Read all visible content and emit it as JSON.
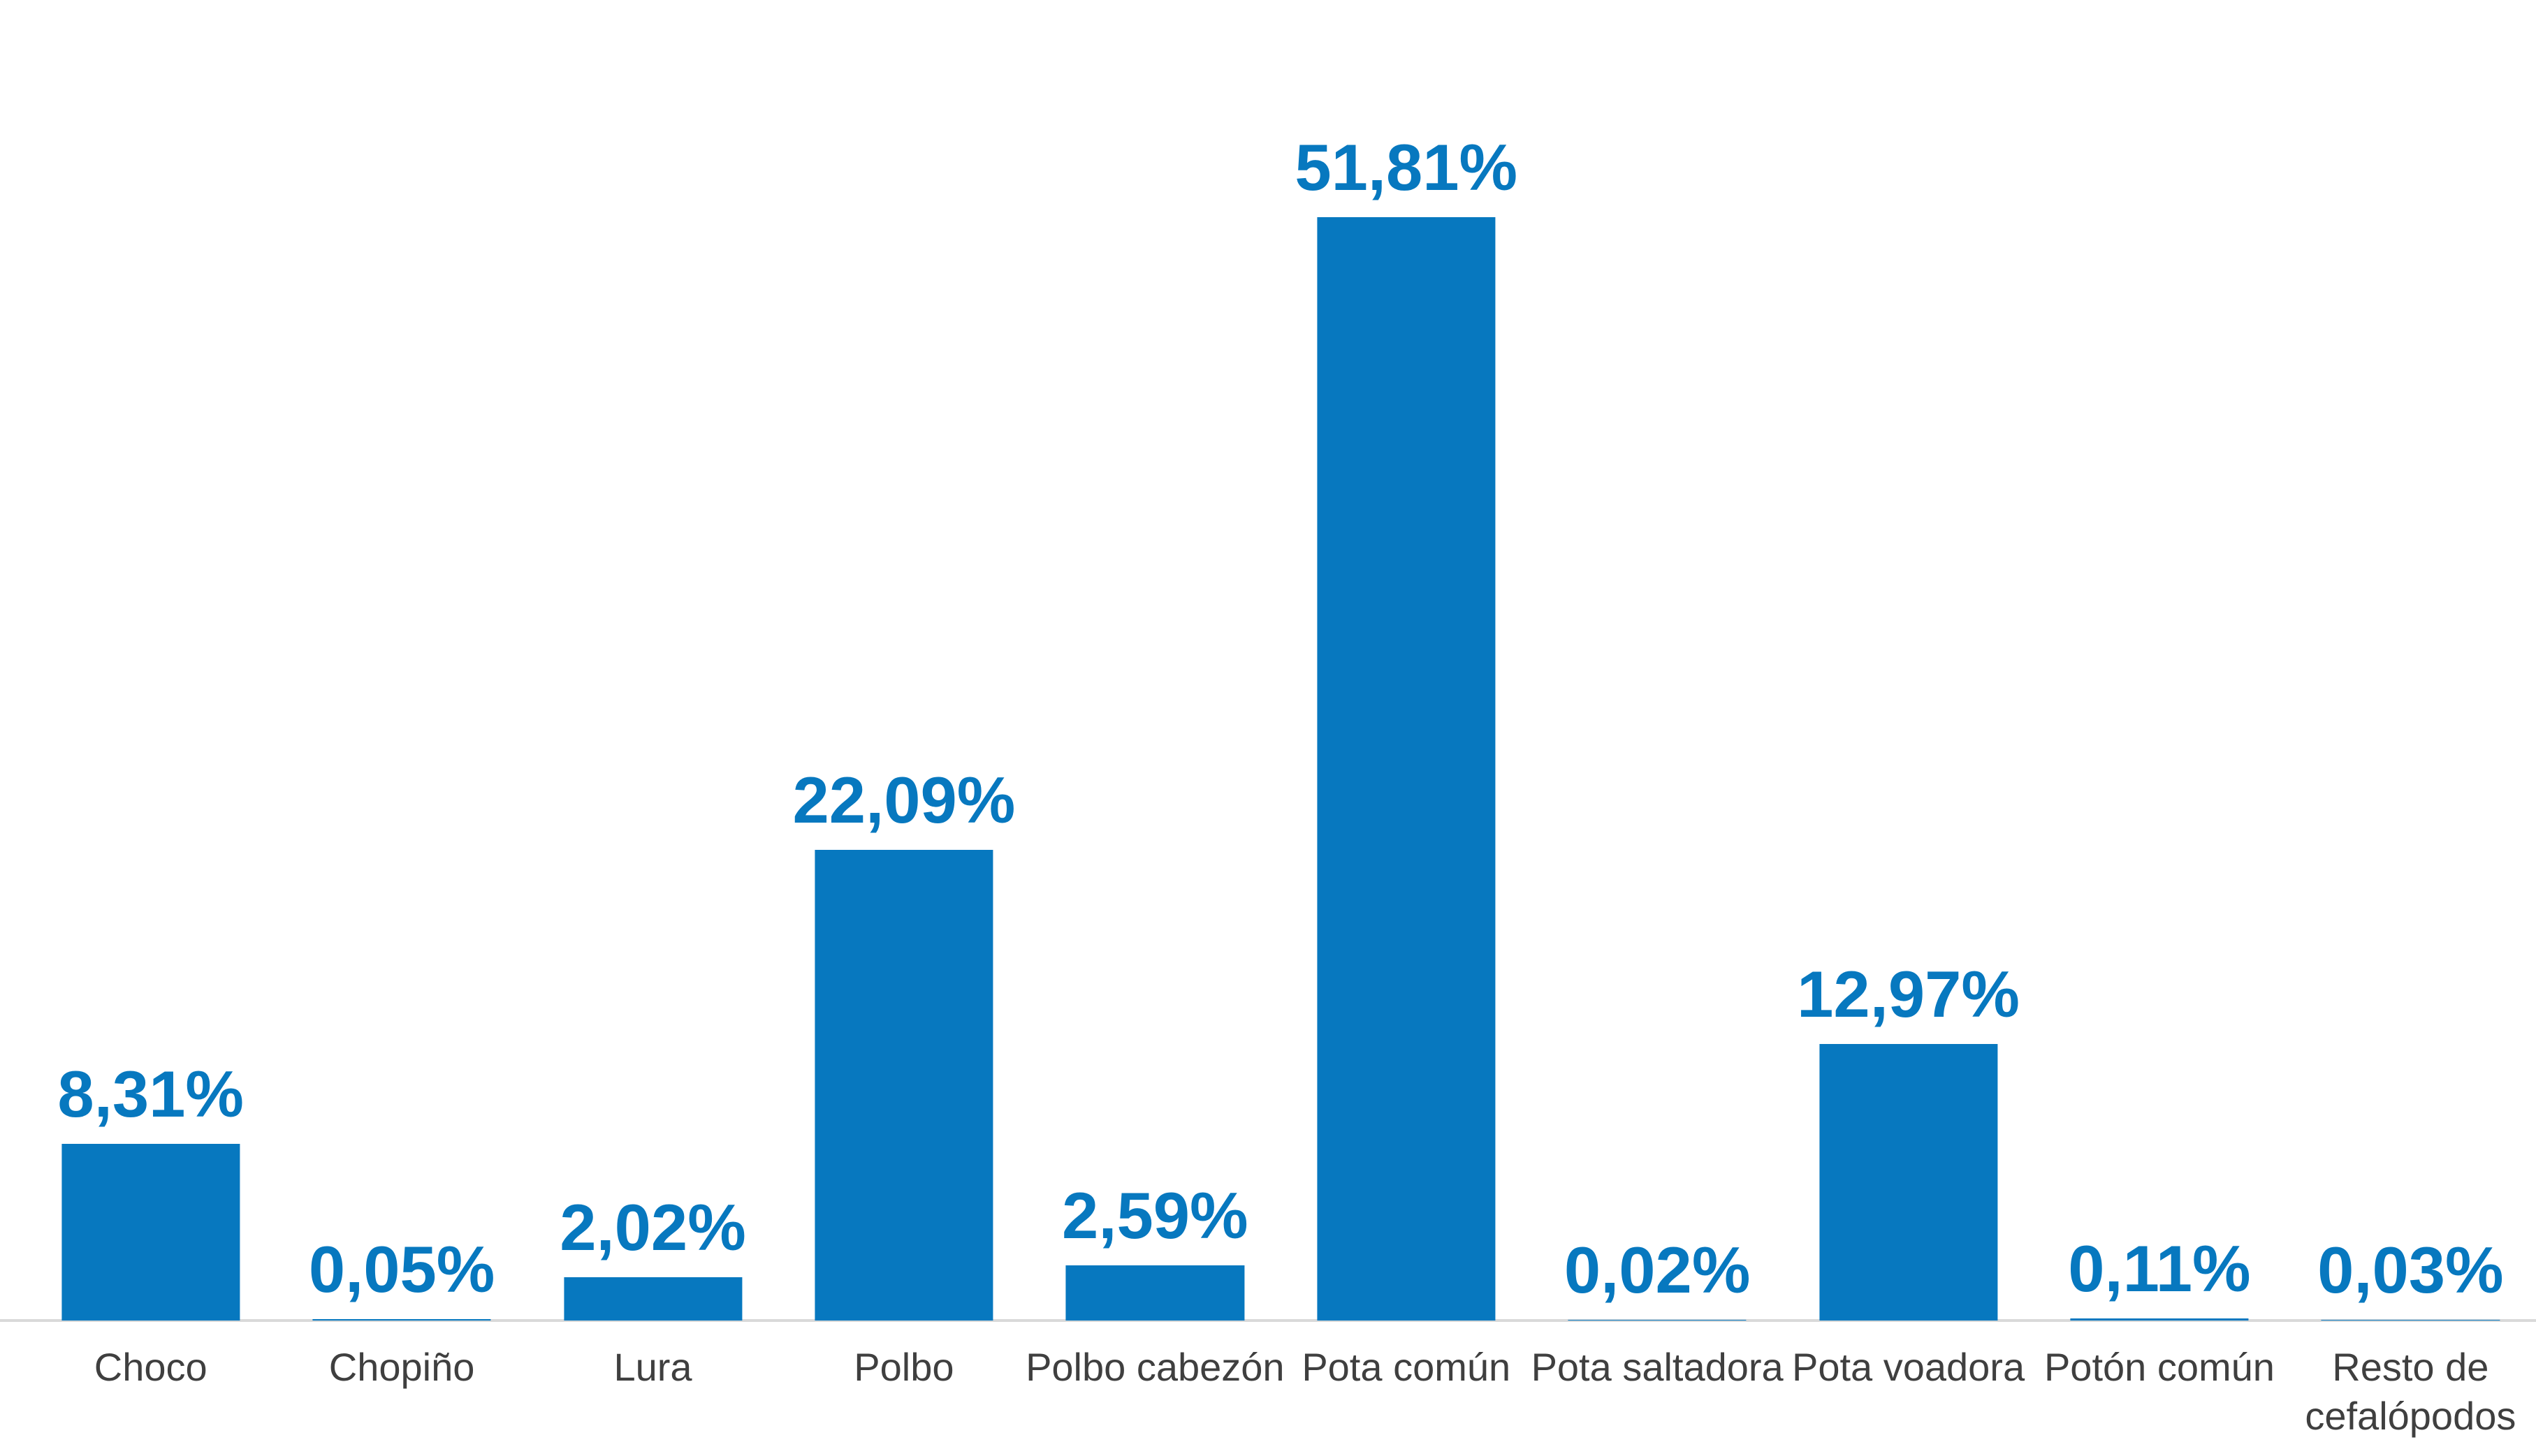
{
  "chart_data": {
    "type": "bar",
    "title": "",
    "xlabel": "",
    "ylabel": "",
    "categories": [
      "Choco",
      "Chopiño",
      "Lura",
      "Polbo",
      "Polbo cabezón",
      "Pota común",
      "Pota saltadora",
      "Pota voadora",
      "Potón común",
      "Resto de cefalópodos"
    ],
    "values": [
      8.31,
      0.05,
      2.02,
      22.09,
      2.59,
      51.81,
      0.02,
      12.97,
      0.11,
      0.03
    ],
    "value_labels": [
      "8,31%",
      "0,05%",
      "2,02%",
      "22,09%",
      "2,59%",
      "51,81%",
      "0,02%",
      "12,97%",
      "0,11%",
      "0,03%"
    ],
    "ylim": [
      0,
      55
    ],
    "grid": false,
    "legend": null,
    "colors": {
      "bar": "#0778BF",
      "value_label": "#0778BF",
      "category_label": "#3F3F3F",
      "axis_line": "#D9D9D9",
      "background": "#FFFFFF"
    }
  }
}
